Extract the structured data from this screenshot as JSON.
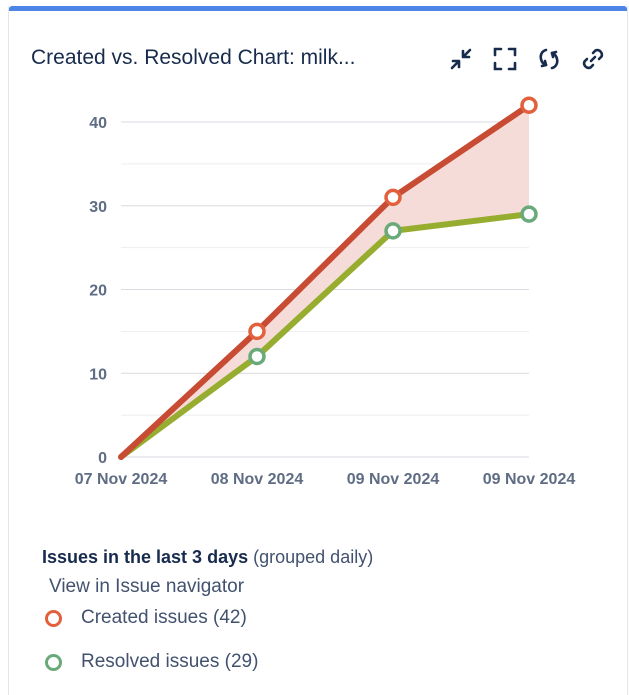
{
  "gadget": {
    "title": "Created vs. Resolved Chart: milk...",
    "actions": [
      {
        "name": "minimize-icon"
      },
      {
        "name": "fullscreen-icon"
      },
      {
        "name": "refresh-icon"
      },
      {
        "name": "link-icon"
      }
    ]
  },
  "chart_data": {
    "type": "line",
    "title": "",
    "xlabel": "",
    "ylabel": "",
    "categories": [
      "07 Nov 2024",
      "08 Nov 2024",
      "09 Nov 2024",
      "09 Nov 2024"
    ],
    "ylim": [
      0,
      40
    ],
    "yticks": [
      0,
      10,
      20,
      30,
      40
    ],
    "grid": true,
    "series": [
      {
        "name": "Created issues",
        "color": "#c84b34",
        "marker_color": "#e2613c",
        "values": [
          0,
          15,
          31,
          42
        ]
      },
      {
        "name": "Resolved issues",
        "color": "#97ad2f",
        "marker_color": "#6aaa7a",
        "values": [
          0,
          12,
          27,
          29
        ]
      }
    ],
    "fill_between_color": "#f6dcd8"
  },
  "legend": {
    "title_bold": "Issues in the last 3 days",
    "title_sub": "(grouped daily)",
    "link": "View in Issue navigator",
    "items": [
      {
        "label": "Created issues (42)",
        "color": "#e2613c"
      },
      {
        "label": "Resolved issues (29)",
        "color": "#6aaa7a"
      }
    ]
  }
}
